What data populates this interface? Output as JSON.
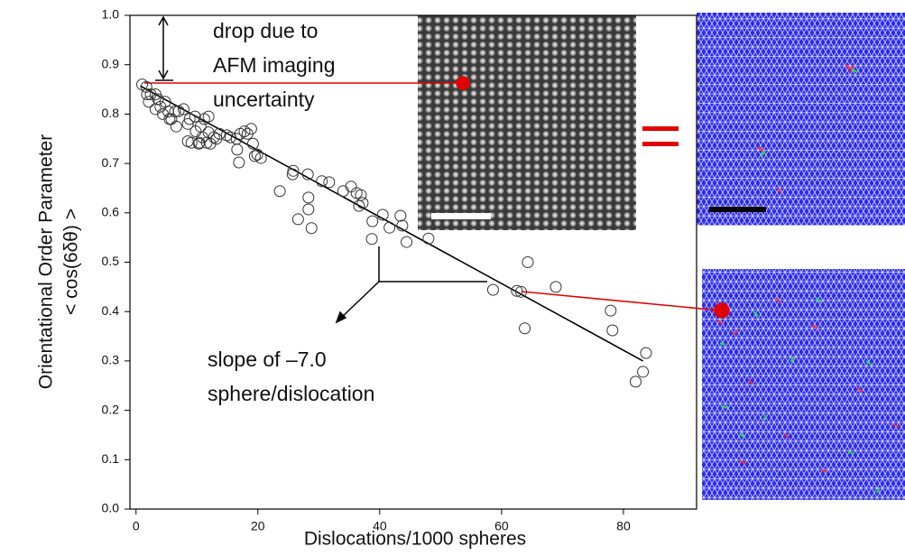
{
  "chart_data": {
    "type": "scatter",
    "xlabel": "Dislocations/1000 spheres",
    "ylabel": [
      "Orientational Order Parameter",
      "< cos(6δθ) >"
    ],
    "annotations": [
      [
        "drop due to",
        "AFM imaging",
        "uncertainty"
      ],
      [
        "slope of –7.0",
        "sphere/dislocation"
      ]
    ],
    "xlim": [
      -1,
      92
    ],
    "ylim": [
      0,
      1
    ],
    "xticks": [
      0,
      20,
      40,
      60,
      80
    ],
    "yticks": [
      {
        "value": 0,
        "label": "0.0"
      },
      0.1,
      0.2,
      0.3,
      0.4,
      0.5,
      0.6,
      0.7,
      0.8,
      0.9,
      {
        "value": 1,
        "label": "1.0"
      }
    ],
    "x": [
      1,
      1.7,
      1.8,
      2.4,
      3.2,
      2.1,
      3.6,
      3.2,
      4,
      4.8,
      4.4,
      5.3,
      5.8,
      5.5,
      6.4,
      7,
      7.8,
      6.6,
      8.5,
      8.8,
      9.7,
      8.5,
      9.8,
      10.6,
      10.9,
      11.2,
      11.9,
      10.3,
      12.2,
      12.8,
      11.6,
      10.4,
      9.1,
      11.9,
      13.2,
      13.7,
      14.9,
      15.5,
      16.6,
      17.1,
      16.5,
      17.8,
      18.3,
      18.9,
      19.2,
      19.5,
      19.9,
      20.5,
      16.9,
      23.6,
      25.7,
      25.8,
      28.2,
      28.3,
      26.6,
      28.3,
      28.8,
      30.5,
      31.7,
      34,
      35.3,
      36.2,
      36.9,
      37.2,
      36.6,
      38.8,
      40.5,
      38.7,
      41.6,
      43.4,
      43.7,
      44.4,
      48,
      58.6,
      62.5,
      63.2,
      64.3,
      63.8,
      68.9,
      77.9,
      78.2,
      82,
      83.2,
      83.7
    ],
    "values": [
      0.86,
      0.855,
      0.84,
      0.84,
      0.84,
      0.825,
      0.83,
      0.81,
      0.815,
      0.825,
      0.8,
      0.805,
      0.79,
      0.79,
      0.805,
      0.806,
      0.81,
      0.775,
      0.78,
      0.79,
      0.795,
      0.745,
      0.765,
      0.775,
      0.753,
      0.79,
      0.795,
      0.74,
      0.74,
      0.753,
      0.742,
      0.742,
      0.742,
      0.763,
      0.75,
      0.76,
      0.757,
      0.753,
      0.728,
      0.76,
      0.75,
      0.765,
      0.76,
      0.77,
      0.74,
      0.715,
      0.718,
      0.711,
      0.702,
      0.644,
      0.678,
      0.685,
      0.678,
      0.631,
      0.587,
      0.607,
      0.569,
      0.664,
      0.662,
      0.644,
      0.653,
      0.64,
      0.636,
      0.62,
      0.614,
      0.583,
      0.596,
      0.547,
      0.57,
      0.594,
      0.574,
      0.541,
      0.548,
      0.444,
      0.442,
      0.44,
      0.5,
      0.366,
      0.45,
      0.402,
      0.362,
      0.258,
      0.278,
      0.316
    ],
    "fit": {
      "x": [
        0.7,
        83.2
      ],
      "values": [
        0.857,
        0.3
      ]
    }
  }
}
